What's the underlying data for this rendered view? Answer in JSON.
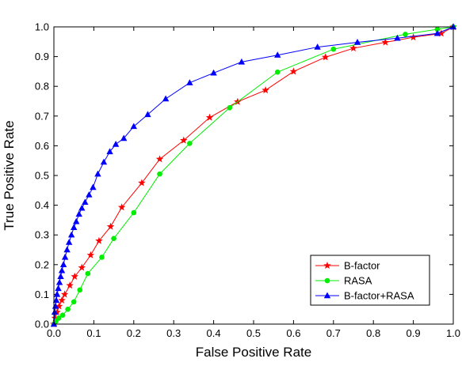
{
  "chart_data": {
    "type": "line",
    "title": "",
    "xlabel": "False Positive Rate",
    "ylabel": "True Positive Rate",
    "xlim": [
      0,
      1
    ],
    "ylim": [
      0,
      1
    ],
    "xticks": [
      "0.0",
      "0.1",
      "0.2",
      "0.3",
      "0.4",
      "0.5",
      "0.6",
      "0.7",
      "0.8",
      "0.9",
      "1.0"
    ],
    "yticks": [
      "0.0",
      "0.1",
      "0.2",
      "0.3",
      "0.4",
      "0.5",
      "0.6",
      "0.7",
      "0.8",
      "0.9",
      "1.0"
    ],
    "grid": false,
    "legend_position": "bottom-right",
    "series": [
      {
        "name": "B-factor",
        "color": "#ff0000",
        "marker": "star",
        "points": [
          [
            0,
            0
          ],
          [
            0.003,
            0.02
          ],
          [
            0.008,
            0.04
          ],
          [
            0.013,
            0.06
          ],
          [
            0.02,
            0.08
          ],
          [
            0.027,
            0.1
          ],
          [
            0.04,
            0.13
          ],
          [
            0.052,
            0.16
          ],
          [
            0.07,
            0.19
          ],
          [
            0.092,
            0.232
          ],
          [
            0.113,
            0.28
          ],
          [
            0.142,
            0.328
          ],
          [
            0.17,
            0.393
          ],
          [
            0.22,
            0.475
          ],
          [
            0.265,
            0.555
          ],
          [
            0.325,
            0.618
          ],
          [
            0.39,
            0.695
          ],
          [
            0.46,
            0.748
          ],
          [
            0.53,
            0.787
          ],
          [
            0.6,
            0.85
          ],
          [
            0.68,
            0.898
          ],
          [
            0.75,
            0.928
          ],
          [
            0.83,
            0.948
          ],
          [
            0.9,
            0.965
          ],
          [
            0.97,
            0.978
          ],
          [
            1.0,
            1.0
          ]
        ]
      },
      {
        "name": "RASA",
        "color": "#00ee00",
        "marker": "circle",
        "points": [
          [
            0,
            0
          ],
          [
            0.005,
            0.01
          ],
          [
            0.012,
            0.02
          ],
          [
            0.022,
            0.03
          ],
          [
            0.035,
            0.05
          ],
          [
            0.05,
            0.075
          ],
          [
            0.065,
            0.115
          ],
          [
            0.085,
            0.17
          ],
          [
            0.12,
            0.225
          ],
          [
            0.15,
            0.288
          ],
          [
            0.2,
            0.375
          ],
          [
            0.265,
            0.505
          ],
          [
            0.34,
            0.608
          ],
          [
            0.44,
            0.728
          ],
          [
            0.56,
            0.848
          ],
          [
            0.7,
            0.925
          ],
          [
            0.88,
            0.975
          ],
          [
            0.96,
            0.992
          ],
          [
            1.0,
            1.0
          ]
        ]
      },
      {
        "name": "B-factor+RASA",
        "color": "#0000ff",
        "marker": "triangle",
        "points": [
          [
            0,
            0
          ],
          [
            0.002,
            0.04
          ],
          [
            0.004,
            0.06
          ],
          [
            0.006,
            0.08
          ],
          [
            0.008,
            0.1
          ],
          [
            0.011,
            0.12
          ],
          [
            0.014,
            0.14
          ],
          [
            0.017,
            0.16
          ],
          [
            0.02,
            0.18
          ],
          [
            0.024,
            0.2
          ],
          [
            0.028,
            0.225
          ],
          [
            0.033,
            0.25
          ],
          [
            0.038,
            0.275
          ],
          [
            0.044,
            0.3
          ],
          [
            0.05,
            0.325
          ],
          [
            0.056,
            0.345
          ],
          [
            0.063,
            0.37
          ],
          [
            0.07,
            0.39
          ],
          [
            0.078,
            0.41
          ],
          [
            0.088,
            0.435
          ],
          [
            0.098,
            0.46
          ],
          [
            0.11,
            0.505
          ],
          [
            0.125,
            0.545
          ],
          [
            0.14,
            0.58
          ],
          [
            0.155,
            0.605
          ],
          [
            0.175,
            0.625
          ],
          [
            0.2,
            0.665
          ],
          [
            0.235,
            0.705
          ],
          [
            0.28,
            0.758
          ],
          [
            0.34,
            0.812
          ],
          [
            0.4,
            0.845
          ],
          [
            0.47,
            0.882
          ],
          [
            0.56,
            0.905
          ],
          [
            0.66,
            0.932
          ],
          [
            0.76,
            0.948
          ],
          [
            0.86,
            0.962
          ],
          [
            0.96,
            0.978
          ],
          [
            1.0,
            1.0
          ]
        ]
      }
    ]
  }
}
